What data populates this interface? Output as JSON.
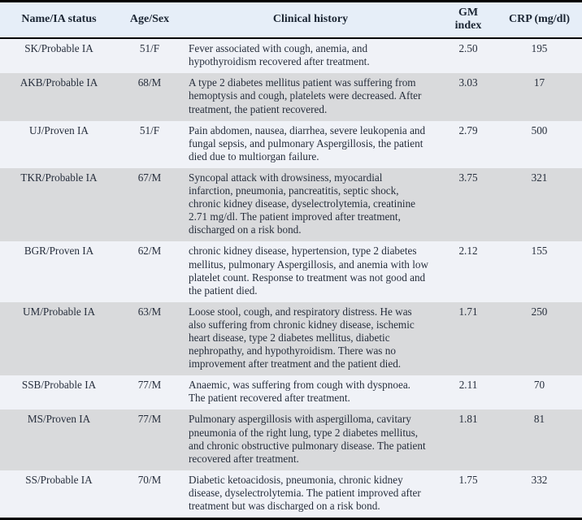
{
  "colors": {
    "header_bg": "#e6eef8",
    "row_light": "#f0f2f7",
    "row_gray": "#d9dadc",
    "text": "#262e3c",
    "header_text": "#1c2634",
    "rule": "#000000"
  },
  "table": {
    "columns": [
      {
        "label": "Name/IA status"
      },
      {
        "label": "Age/Sex"
      },
      {
        "label": "Clinical history"
      },
      {
        "label": "GM index"
      },
      {
        "label": "CRP (mg/dl)"
      }
    ],
    "rows": [
      {
        "name": "SK/Probable IA",
        "age_sex": "51/F",
        "history": "Fever associated with cough, anemia, and hypothyroidism recovered after treatment.",
        "gm": "2.50",
        "crp": "195"
      },
      {
        "name": "AKB/Probable IA",
        "age_sex": "68/M",
        "history": "A type 2 diabetes mellitus patient was suffering from hemoptysis and cough, platelets were decreased. After treatment, the patient recovered.",
        "gm": "3.03",
        "crp": "17"
      },
      {
        "name": "UJ/Proven IA",
        "age_sex": "51/F",
        "history": "Pain abdomen, nausea, diarrhea, severe leukopenia and fungal sepsis, and pulmonary Aspergillosis, the patient died due to multiorgan failure.",
        "gm": "2.79",
        "crp": "500"
      },
      {
        "name": "TKR/Probable IA",
        "age_sex": "67/M",
        "history": "Syncopal attack with drowsiness, myocardial infarction, pneumonia, pancreatitis, septic shock, chronic kidney disease, dyselectrolytemia, creatinine 2.71 mg/dl. The patient improved after treatment, discharged on a risk bond.",
        "gm": "3.75",
        "crp": "321"
      },
      {
        "name": "BGR/Proven IA",
        "age_sex": "62/M",
        "history": "chronic kidney disease, hypertension, type 2 diabetes mellitus, pulmonary Aspergillosis, and anemia with low platelet count. Response to treatment was not good and the patient died.",
        "gm": "2.12",
        "crp": "155"
      },
      {
        "name": "UM/Probable IA",
        "age_sex": "63/M",
        "history": "Loose stool, cough, and respiratory distress. He was also suffering from chronic kidney disease, ischemic heart disease, type 2 diabetes mellitus, diabetic nephropathy, and hypothyroidism. There was no improvement after treatment and the patient died.",
        "gm": "1.71",
        "crp": "250"
      },
      {
        "name": "SSB/Probable IA",
        "age_sex": "77/M",
        "history": "Anaemic, was suffering from cough with dyspnoea. The patient recovered after treatment.",
        "gm": "2.11",
        "crp": "70"
      },
      {
        "name": "MS/Proven IA",
        "age_sex": "77/M",
        "history": "Pulmonary aspergillosis with aspergilloma, cavitary pneumonia of the right lung, type 2 diabetes mellitus, and chronic obstructive pulmonary disease. The patient recovered after treatment.",
        "gm": "1.81",
        "crp": "81"
      },
      {
        "name": "SS/Probable IA",
        "age_sex": "70/M",
        "history": "Diabetic ketoacidosis, pneumonia, chronic kidney disease, dyselectrolytemia. The patient improved after treatment but was discharged on a risk bond.",
        "gm": "1.75",
        "crp": "332"
      }
    ]
  }
}
